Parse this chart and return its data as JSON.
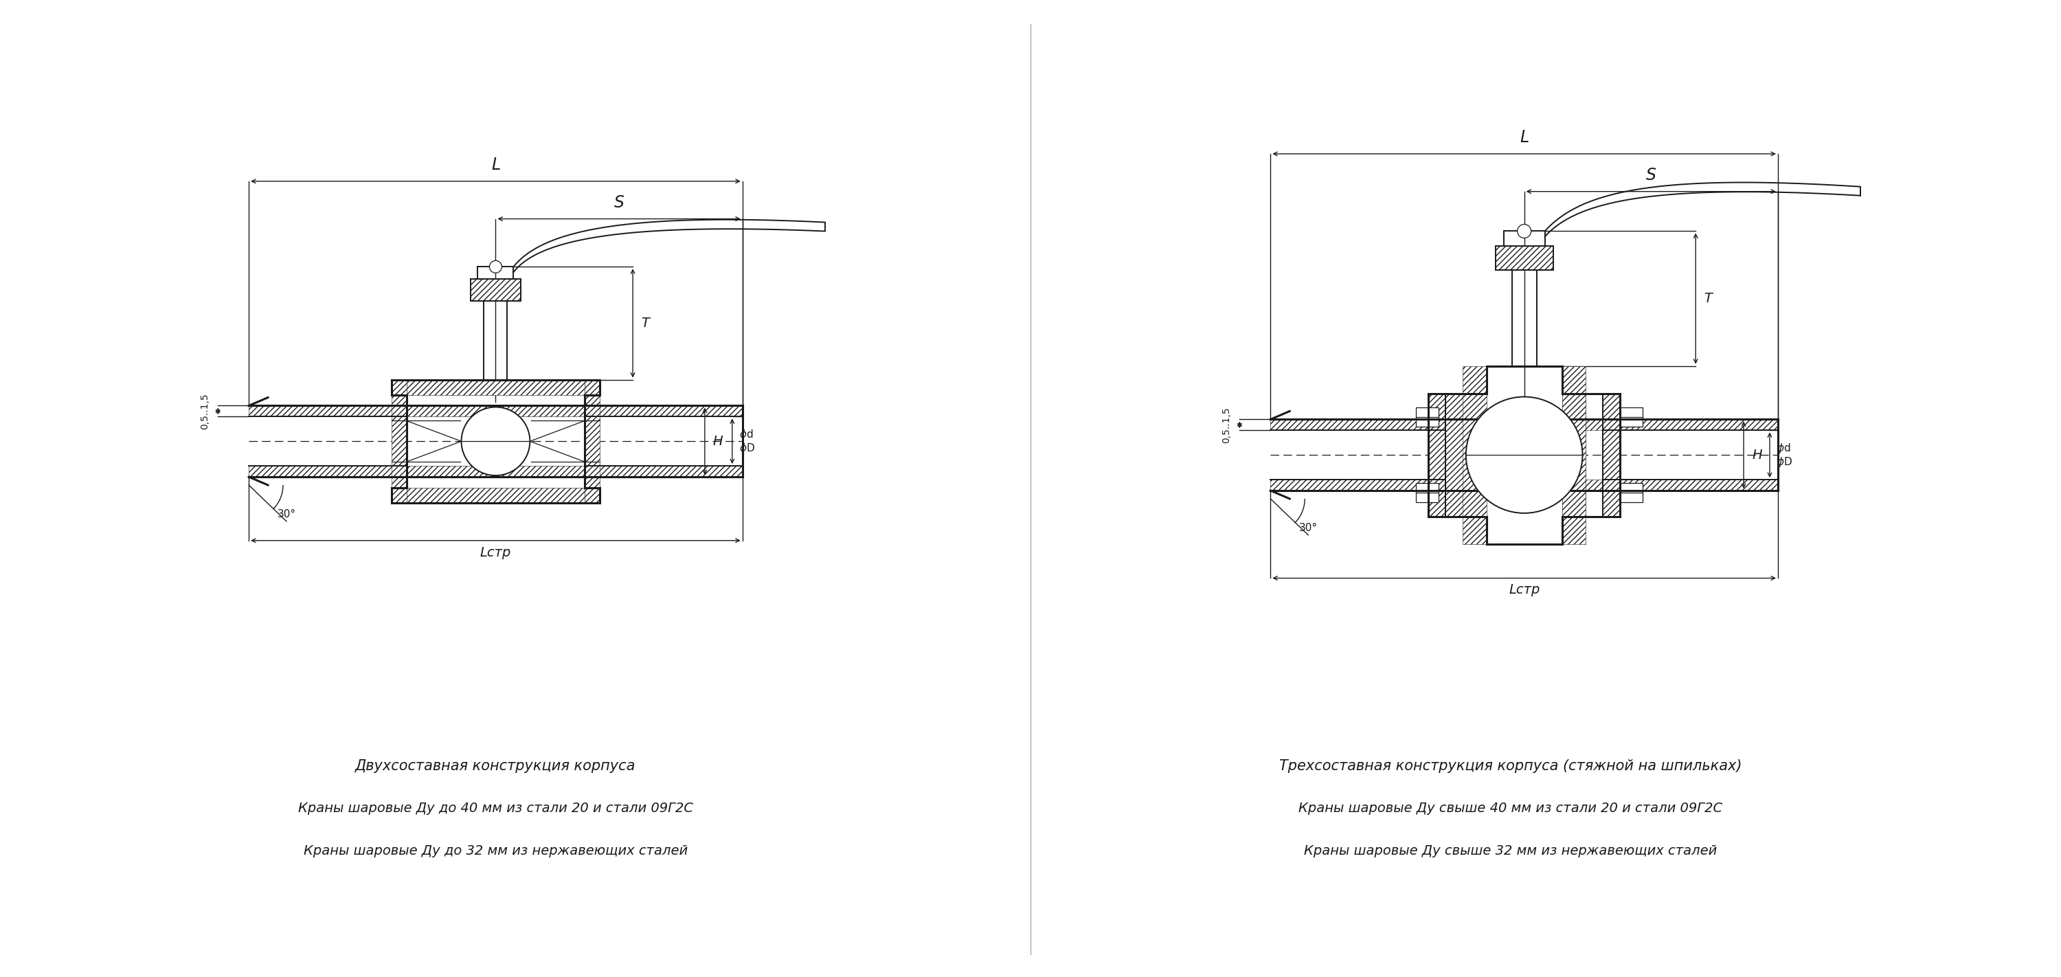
{
  "bg_color": "#ffffff",
  "line_color": "#1a1a1a",
  "text_color": "#1a1a1a",
  "left_caption": [
    "Двухсоставная конструкция корпуса",
    "Краны шаровые Ду до 40 мм из стали 20 и стали 09Г2С",
    "Краны шаровые Ду до 32 мм из нержавеющих сталей"
  ],
  "right_caption": [
    "Трехсоставная конструкция корпуса (стяжной на шпильках)",
    "Краны шаровые Ду свыше 40 мм из стали 20 и стали 09Г2С",
    "Краны шаровые Ду свыше 32 мм из нержавеющих сталей"
  ]
}
